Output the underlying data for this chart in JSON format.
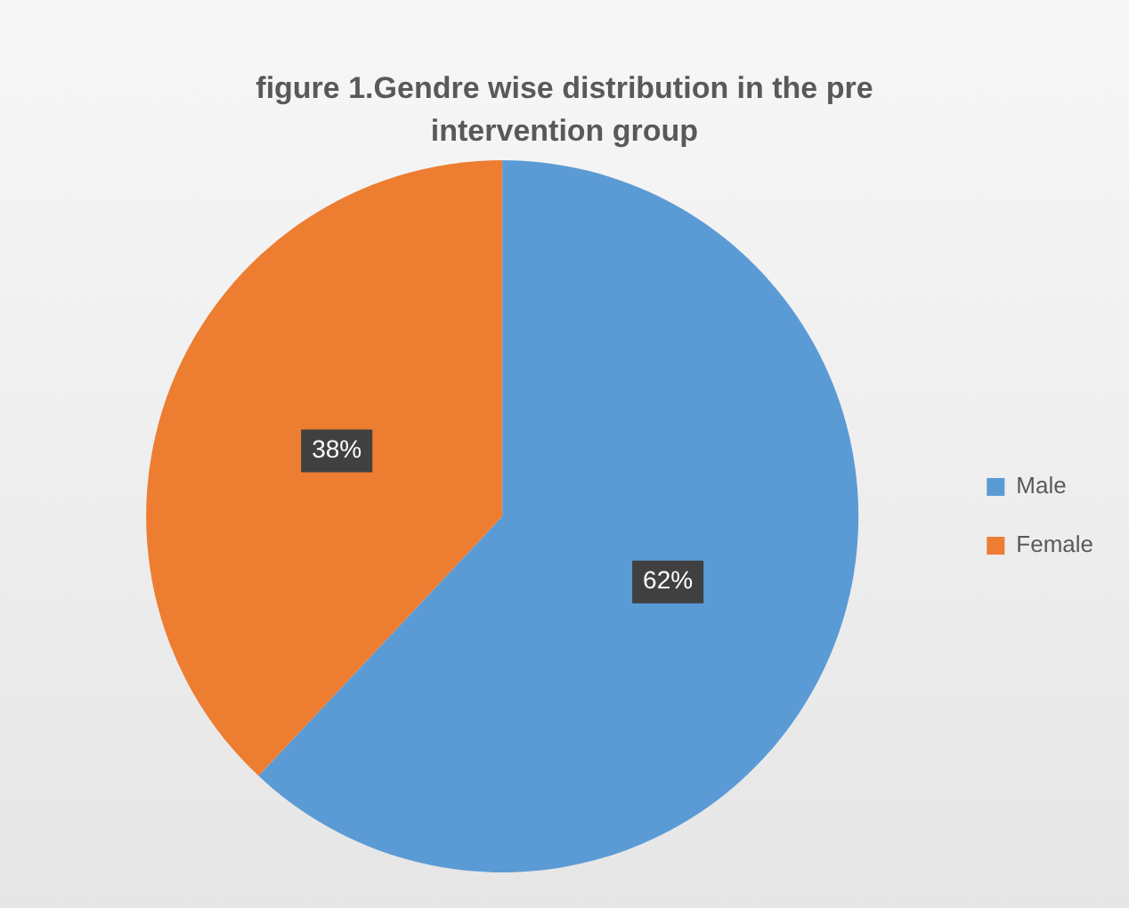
{
  "chart_data": {
    "type": "pie",
    "title": "figure 1.Gendre wise distribution in the pre intervention group",
    "categories": [
      "Male",
      "Female"
    ],
    "values": [
      62,
      38
    ],
    "colors": [
      "#5b9bd5",
      "#ed7d31"
    ],
    "value_labels": [
      "62%",
      "38%"
    ],
    "legend": "right"
  }
}
